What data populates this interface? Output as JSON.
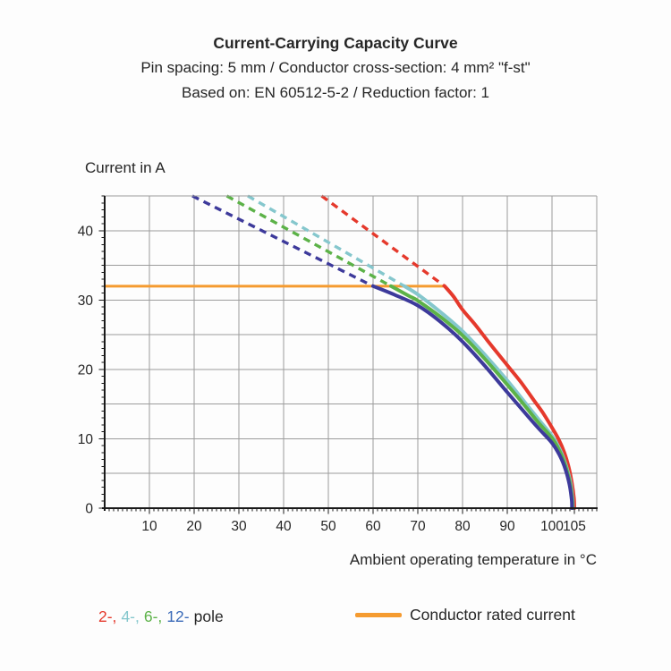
{
  "header": {
    "title": "Current-Carrying Capacity Curve",
    "subtitle1": "Pin spacing: 5 mm / Conductor cross-section: 4 mm² \"f-st\"",
    "subtitle2": "Based on: EN 60512-5-2 / Reduction factor: 1"
  },
  "chart_data": {
    "type": "line",
    "title": "Current-Carrying Capacity Curve",
    "subtitle": "Pin spacing: 5 mm / Conductor cross-section: 4 mm² \"f-st\" | Based on: EN 60512-5-2 / Reduction factor: 1",
    "xlabel": "Ambient operating temperature in °C",
    "ylabel": "Current in A",
    "xlim": [
      0,
      110
    ],
    "ylim": [
      0,
      45
    ],
    "x_major_ticks": [
      10,
      20,
      30,
      40,
      50,
      60,
      70,
      80,
      90,
      100,
      105
    ],
    "y_major_ticks": [
      0,
      10,
      20,
      30,
      40
    ],
    "x_minor_step": 1,
    "y_minor_step": 1,
    "x_grid_step": 10,
    "y_grid_step": 5,
    "grid": true,
    "grid_color": "#9C9C9C",
    "axis_color": "#1A1A1A",
    "text_color": "#262626",
    "legend_position": "bottom",
    "rated_current": {
      "label": "Conductor rated current",
      "value_a": 32,
      "x_start": 0,
      "x_end": 76,
      "color": "#F59B30"
    },
    "series": [
      {
        "name": "2-pole",
        "poles": 2,
        "color": "#E5392C",
        "dashed": [
          [
            48.5,
            45
          ],
          [
            76,
            32
          ]
        ],
        "solid": [
          [
            76,
            32
          ],
          [
            78,
            30.5
          ],
          [
            80,
            28.6
          ],
          [
            83,
            26.3
          ],
          [
            86,
            23.8
          ],
          [
            90,
            20.6
          ],
          [
            93,
            18.2
          ],
          [
            96,
            15.5
          ],
          [
            98,
            13.7
          ],
          [
            100,
            11.6
          ],
          [
            101.5,
            9.9
          ],
          [
            102.7,
            8.1
          ],
          [
            103.7,
            6.0
          ],
          [
            104.4,
            3.8
          ],
          [
            104.9,
            1.5
          ],
          [
            105,
            0
          ]
        ]
      },
      {
        "name": "4-pole",
        "poles": 4,
        "color": "#85C7CD",
        "dashed": [
          [
            32,
            45
          ],
          [
            67,
            32
          ]
        ],
        "solid": [
          [
            67,
            32
          ],
          [
            70,
            30.8
          ],
          [
            75,
            28.3
          ],
          [
            80,
            25.5
          ],
          [
            85,
            22.1
          ],
          [
            90,
            18.4
          ],
          [
            94,
            15.2
          ],
          [
            97,
            12.8
          ],
          [
            100,
            10.4
          ],
          [
            101.8,
            8.4
          ],
          [
            103,
            6.4
          ],
          [
            104.1,
            3.8
          ],
          [
            104.6,
            1.3
          ],
          [
            104.65,
            0
          ]
        ]
      },
      {
        "name": "6-pole",
        "poles": 6,
        "color": "#5CB248",
        "dashed": [
          [
            27.3,
            45
          ],
          [
            64,
            32
          ]
        ],
        "solid": [
          [
            64,
            32
          ],
          [
            68,
            30.6
          ],
          [
            70,
            29.9
          ],
          [
            75,
            27.6
          ],
          [
            80,
            24.9
          ],
          [
            85,
            21.5
          ],
          [
            90,
            17.8
          ],
          [
            94,
            14.7
          ],
          [
            97,
            12.3
          ],
          [
            100,
            10.1
          ],
          [
            101.8,
            8.1
          ],
          [
            103,
            6.1
          ],
          [
            104,
            3.6
          ],
          [
            104.5,
            1.2
          ],
          [
            104.55,
            0
          ]
        ]
      },
      {
        "name": "12-pole",
        "poles": 12,
        "color": "#3D3A9B",
        "dashed": [
          [
            19.6,
            45
          ],
          [
            60,
            32
          ]
        ],
        "solid": [
          [
            60,
            32
          ],
          [
            65,
            30.7
          ],
          [
            70,
            29.2
          ],
          [
            75,
            26.9
          ],
          [
            80,
            24
          ],
          [
            85,
            20.5
          ],
          [
            90,
            16.7
          ],
          [
            94,
            13.7
          ],
          [
            97,
            11.5
          ],
          [
            100,
            9.4
          ],
          [
            101.8,
            7.5
          ],
          [
            103,
            5.6
          ],
          [
            103.9,
            3.4
          ],
          [
            104.4,
            1.2
          ],
          [
            104.45,
            0
          ]
        ]
      }
    ]
  },
  "legend": {
    "pole_parts": [
      {
        "text": "2-,",
        "color": "#E5392C"
      },
      {
        "text": "4-,",
        "color": "#85C7CD"
      },
      {
        "text": "6-,",
        "color": "#5CB248"
      },
      {
        "text": "12-",
        "color": "#3A6AB8"
      },
      {
        "text": "pole",
        "color": "#262626"
      }
    ],
    "rated_label": "Conductor rated current"
  }
}
